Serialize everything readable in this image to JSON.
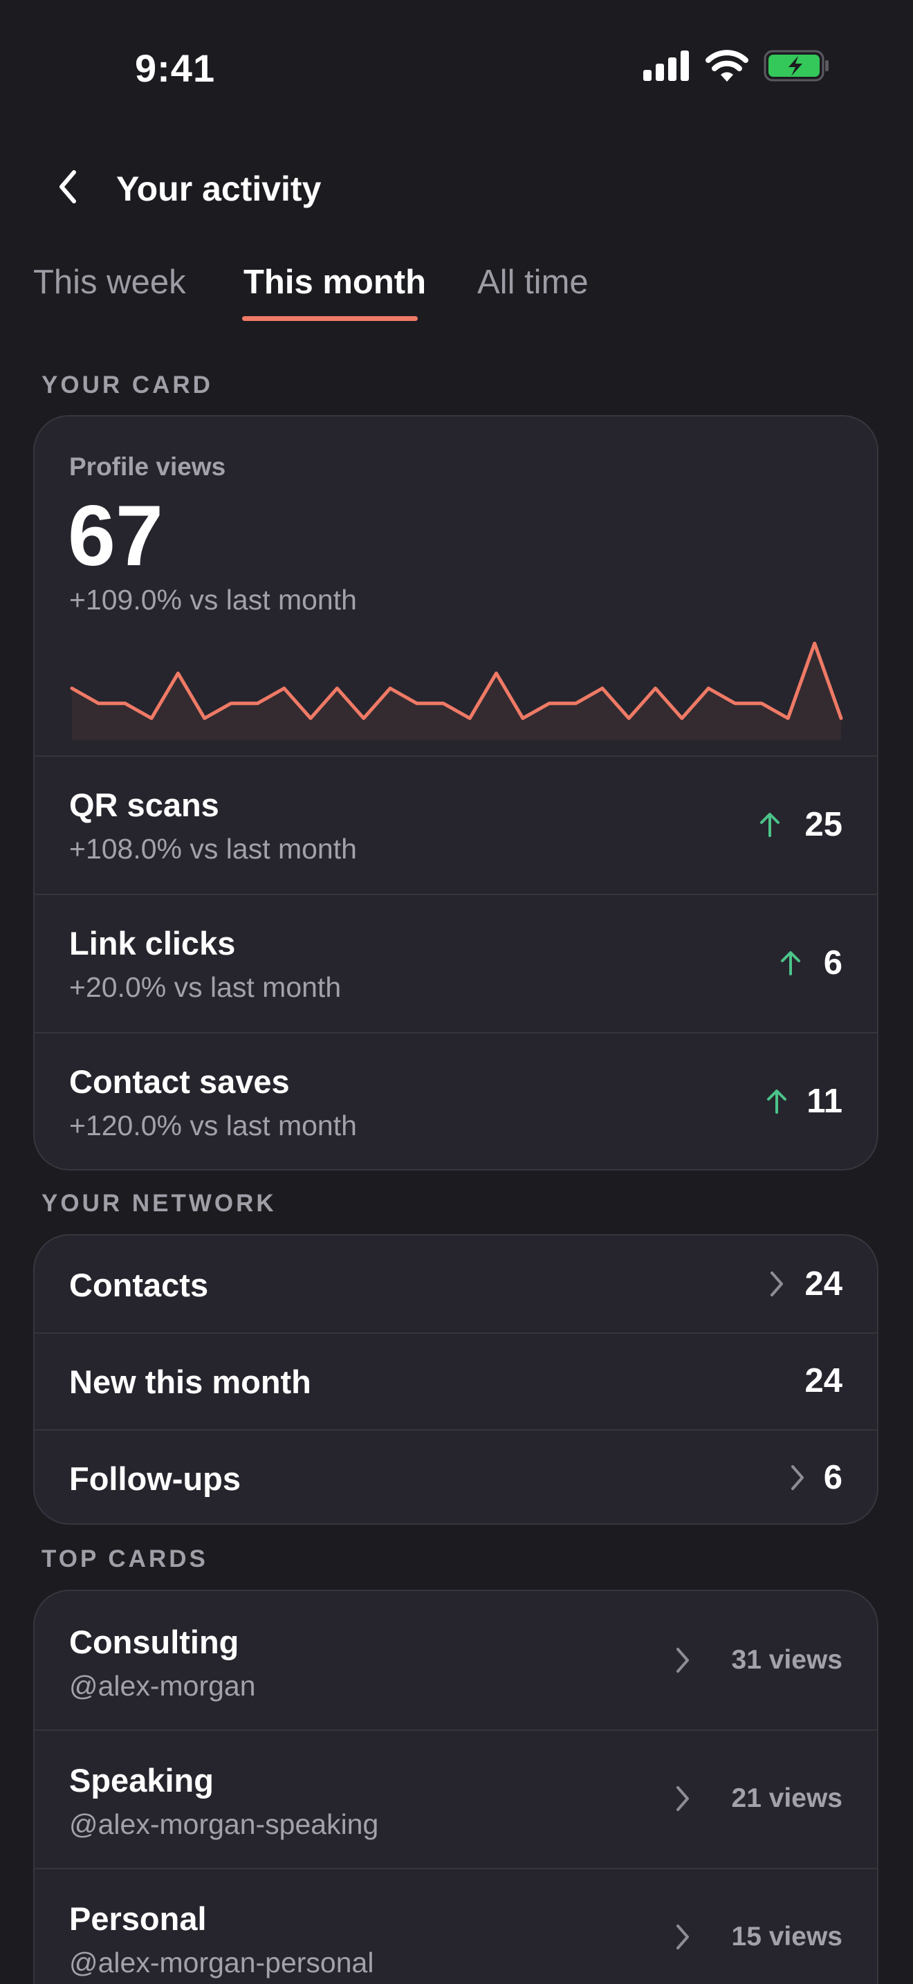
{
  "status_bar": {
    "time": "9:41",
    "battery_color": "#34c759"
  },
  "header": {
    "title": "Your activity",
    "back_icon": "chevron-left-icon"
  },
  "tabs": [
    {
      "label": "This week",
      "active": false
    },
    {
      "label": "This month",
      "active": true
    },
    {
      "label": "All time",
      "active": false
    }
  ],
  "accent_color": "#ef7a66",
  "positive_color": "#4cc38a",
  "your_card": {
    "section_label": "YOUR CARD",
    "profile_views": {
      "label": "Profile views",
      "value": "67",
      "change": "+109.0% vs last month",
      "trend": [
        3,
        2,
        2,
        1,
        4,
        1,
        2,
        2,
        3,
        1,
        3,
        1,
        3,
        2,
        2,
        1,
        4,
        1,
        2,
        2,
        3,
        1,
        3,
        1,
        3,
        2,
        2,
        1,
        6,
        1
      ]
    },
    "metrics": [
      {
        "title": "QR scans",
        "change": "+108.0% vs last month",
        "value": "25"
      },
      {
        "title": "Link clicks",
        "change": "+20.0% vs last month",
        "value": "6"
      },
      {
        "title": "Contact saves",
        "change": "+120.0% vs last month",
        "value": "11"
      }
    ]
  },
  "your_network": {
    "section_label": "YOUR NETWORK",
    "rows": [
      {
        "title": "Contacts",
        "value": "24",
        "has_chevron": true
      },
      {
        "title": "New this month",
        "value": "24",
        "has_chevron": false
      },
      {
        "title": "Follow-ups",
        "value": "6",
        "has_chevron": true
      }
    ]
  },
  "top_cards": {
    "section_label": "TOP CARDS",
    "rows": [
      {
        "title": "Consulting",
        "handle": "@alex-morgan",
        "views": "31 views"
      },
      {
        "title": "Speaking",
        "handle": "@alex-morgan-speaking",
        "views": "21 views"
      },
      {
        "title": "Personal",
        "handle": "@alex-morgan-personal",
        "views": "15 views"
      }
    ]
  }
}
